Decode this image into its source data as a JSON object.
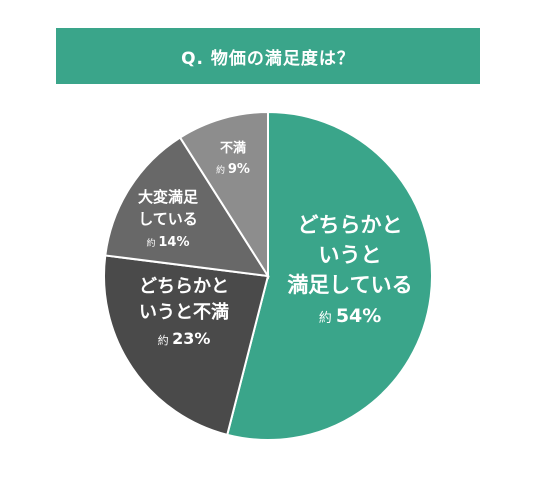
{
  "title": "Q. 物価の満足度は？",
  "colors": {
    "banner": "#3aa58a",
    "border": "#ffffff"
  },
  "chart_data": {
    "type": "pie",
    "title": "Q. 物価の満足度は？",
    "unit": "%",
    "slices": [
      {
        "label_lines": [
          "どちらかと",
          "いうと",
          "満足している"
        ],
        "value": 54,
        "value_text": "54%",
        "prefix": "約",
        "color": "#3aa58a"
      },
      {
        "label_lines": [
          "どちらかと",
          "いうと不満"
        ],
        "value": 23,
        "value_text": "23%",
        "prefix": "約",
        "color": "#4a4a4a"
      },
      {
        "label_lines": [
          "大変満足",
          "している"
        ],
        "value": 14,
        "value_text": "14%",
        "prefix": "約",
        "color": "#686868"
      },
      {
        "label_lines": [
          "不満"
        ],
        "value": 9,
        "value_text": "9%",
        "prefix": "約",
        "color": "#8d8d8d"
      }
    ]
  }
}
